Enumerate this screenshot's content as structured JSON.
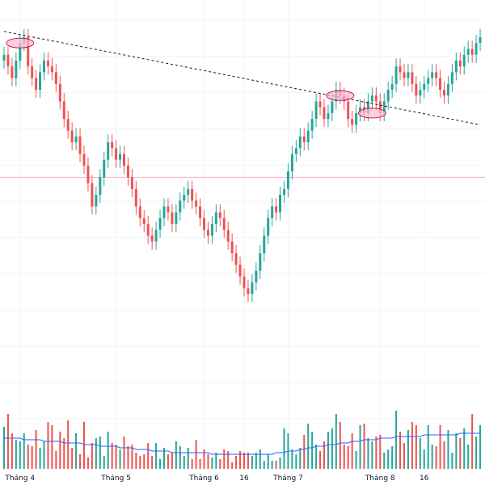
{
  "chart_data": {
    "type": "candlestick",
    "title": "",
    "xlabel": "",
    "ylabel": "",
    "grid": true,
    "colors": {
      "up": "#26a69a",
      "down": "#ef5350",
      "volume_ma": "#2962ff",
      "trendline": "#131722",
      "highlight_fill": "#f8bbd0",
      "highlight_stroke": "#c2185b",
      "reference_line": "#f48fb1",
      "grid": "#f0f3fa"
    },
    "x_ticks": [
      {
        "label": "Tháng 4",
        "index": 4
      },
      {
        "label": "Tháng 5",
        "index": 28
      },
      {
        "label": "Tháng 6",
        "index": 50
      },
      {
        "label": "16",
        "index": 60
      },
      {
        "label": "Tháng 7",
        "index": 71
      },
      {
        "label": "Tháng 8",
        "index": 94
      },
      {
        "label": "16",
        "index": 105
      }
    ],
    "price_range": [
      0,
      100
    ],
    "reference_level": 53,
    "closes": [
      74,
      72,
      70,
      73,
      76,
      77,
      72,
      70,
      68,
      71,
      73,
      72,
      71,
      69,
      66,
      63,
      61,
      59,
      60,
      57,
      55,
      52,
      48,
      50,
      53,
      56,
      59,
      58,
      56,
      57,
      55,
      53,
      51,
      48,
      46,
      45,
      43,
      42,
      44,
      46,
      48,
      47,
      45,
      47,
      49,
      50,
      51,
      49,
      48,
      46,
      44,
      43,
      45,
      47,
      46,
      44,
      42,
      40,
      38,
      36,
      34,
      33,
      35,
      37,
      40,
      43,
      46,
      48,
      47,
      50,
      51,
      54,
      57,
      58,
      60,
      59,
      61,
      63,
      66,
      65,
      63,
      64,
      66,
      68,
      67,
      66,
      63,
      62,
      64,
      65,
      64,
      66,
      67,
      66,
      64,
      66,
      68,
      69,
      72,
      71,
      70,
      71,
      69,
      67,
      68,
      69,
      70,
      71,
      70,
      68,
      67,
      69,
      71,
      73,
      72,
      74,
      75,
      74,
      76,
      77
    ],
    "volumes": [
      26,
      34,
      22,
      18,
      17,
      22,
      15,
      14,
      24,
      13,
      17,
      29,
      27,
      11,
      23,
      19,
      30,
      13,
      22,
      9,
      29,
      7,
      16,
      19,
      20,
      8,
      23,
      16,
      15,
      12,
      20,
      14,
      15,
      10,
      8,
      9,
      16,
      8,
      16,
      6,
      13,
      9,
      10,
      17,
      14,
      8,
      13,
      6,
      18,
      6,
      12,
      9,
      7,
      10,
      6,
      12,
      11,
      4,
      8,
      11,
      10,
      10,
      8,
      10,
      12,
      5,
      9,
      5,
      5,
      7,
      25,
      22,
      12,
      9,
      13,
      21,
      28,
      23,
      15,
      11,
      17,
      23,
      25,
      34,
      29,
      15,
      14,
      22,
      11,
      27,
      28,
      19,
      17,
      20,
      21,
      10,
      12,
      14,
      36,
      23,
      16,
      24,
      29,
      27,
      19,
      12,
      27,
      15,
      14,
      27,
      17,
      24,
      10,
      22,
      19,
      25,
      15,
      34,
      20,
      27
    ],
    "volume_ma": [
      19,
      19,
      19,
      19,
      19,
      18,
      18,
      18,
      18,
      18,
      17,
      17,
      17,
      17,
      17,
      16,
      16,
      16,
      16,
      16,
      15,
      15,
      15,
      15,
      14,
      14,
      14,
      14,
      14,
      13,
      13,
      13,
      13,
      12,
      12,
      12,
      12,
      11,
      11,
      11,
      11,
      11,
      10,
      10,
      10,
      10,
      10,
      10,
      10,
      10,
      10,
      10,
      9,
      9,
      9,
      9,
      9,
      9,
      9,
      9,
      9,
      9,
      9,
      9,
      9,
      9,
      9,
      9,
      10,
      10,
      10,
      11,
      11,
      11,
      12,
      12,
      13,
      13,
      14,
      14,
      14,
      15,
      15,
      15,
      16,
      16,
      16,
      17,
      17,
      17,
      18,
      18,
      18,
      18,
      19,
      19,
      19,
      19,
      20,
      20,
      20,
      20,
      20,
      20,
      20,
      21,
      21,
      21,
      21,
      21,
      21,
      21,
      21,
      21,
      22,
      22,
      22,
      22,
      22,
      22
    ],
    "trendline": {
      "from": {
        "index": 0,
        "price": 78
      },
      "to": {
        "index": 119,
        "price": 62
      }
    },
    "highlights": [
      {
        "index": 4,
        "price": 76
      },
      {
        "index": 84,
        "price": 67
      },
      {
        "index": 92,
        "price": 64
      }
    ]
  }
}
